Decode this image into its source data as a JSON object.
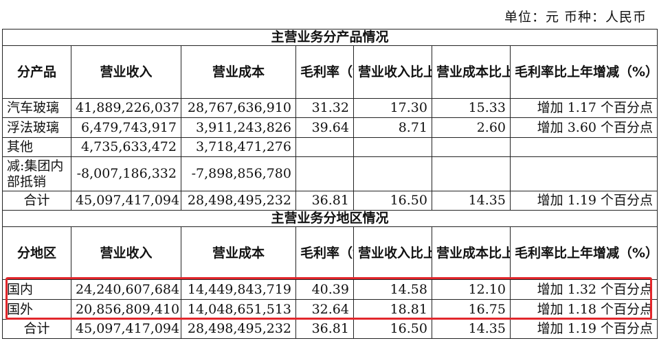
{
  "unit_line": "单位：元   币种：人民币",
  "section_product": "主营业务分产品情况",
  "section_region": "主营业务分地区情况",
  "headers_product": [
    "分产品",
    "营业收入",
    "营业成本",
    "毛利率（%）",
    "营业收入比上年增减（%）",
    "营业成本比上年增减（%）",
    "毛利率比上年增减（%）"
  ],
  "headers_region": [
    "分地区",
    "营业收入",
    "营业成本",
    "毛利率（%）",
    "营业收入比上年增减（%）",
    "营业成本比上年增减（%）",
    "毛利率比上年增减（%）"
  ],
  "product_rows": [
    [
      "汽车玻璃",
      "41,889,226,037",
      "28,767,636,910",
      "31.32",
      "17.30",
      "15.33",
      "增加 1.17 个百分点"
    ],
    [
      "浮法玻璃",
      "6,479,743,917",
      "3,911,243,826",
      "39.64",
      "8.71",
      "2.60",
      "增加 3.60 个百分点"
    ],
    [
      "其他",
      "4,735,633,472",
      "3,718,471,276",
      "",
      "",
      "",
      ""
    ],
    [
      "减:集团内部抵销",
      "-8,007,186,332",
      "-7,898,856,780",
      "",
      "",
      "",
      ""
    ],
    [
      "合计",
      "45,097,417,094",
      "28,498,495,232",
      "36.81",
      "16.50",
      "14.35",
      "增加 1.19 个百分点"
    ]
  ],
  "region_rows": [
    [
      "国内",
      "24,240,607,684",
      "14,449,843,719",
      "40.39",
      "14.58",
      "12.10",
      "增加 1.32 个百分点"
    ],
    [
      "国外",
      "20,856,809,410",
      "14,048,651,513",
      "32.64",
      "18.81",
      "16.75",
      "增加 1.18 个百分点"
    ],
    [
      "合计",
      "45,097,417,094",
      "28,498,495,232",
      "36.81",
      "16.50",
      "14.35",
      "增加 1.19 个百分点"
    ]
  ],
  "highlight_color": "#e2262b"
}
